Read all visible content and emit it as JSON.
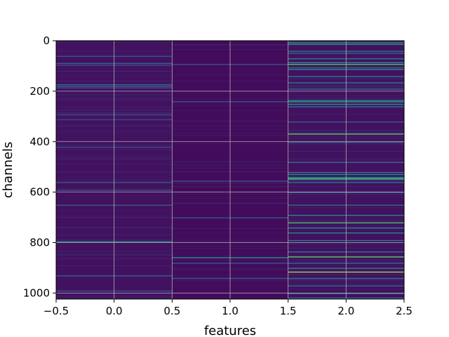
{
  "chart_data": {
    "type": "heatmap",
    "title": "",
    "xlabel": "features",
    "ylabel": "channels",
    "xlim": [
      -0.5,
      2.5
    ],
    "ylim": [
      1024,
      0
    ],
    "y_inverted": true,
    "grid": true,
    "colormap": "viridis",
    "x_ticks": [
      {
        "value": -0.5,
        "label": "−0.5"
      },
      {
        "value": 0.0,
        "label": "0.0"
      },
      {
        "value": 0.5,
        "label": "0.5"
      },
      {
        "value": 1.0,
        "label": "1.0"
      },
      {
        "value": 1.5,
        "label": "1.5"
      },
      {
        "value": 2.0,
        "label": "2.0"
      },
      {
        "value": 2.5,
        "label": "2.5"
      }
    ],
    "y_ticks": [
      {
        "value": 0,
        "label": "0"
      },
      {
        "value": 200,
        "label": "200"
      },
      {
        "value": 400,
        "label": "400"
      },
      {
        "value": 600,
        "label": "600"
      },
      {
        "value": 800,
        "label": "800"
      },
      {
        "value": 1000,
        "label": "1000"
      }
    ],
    "n_rows": 1024,
    "columns": [
      {
        "index": 0,
        "base_level": 0.05,
        "highlights": [
          [
            60,
            0.25
          ],
          [
            88,
            0.3
          ],
          [
            95,
            0.25
          ],
          [
            172,
            0.3
          ],
          [
            178,
            0.35
          ],
          [
            185,
            0.25
          ],
          [
            290,
            0.2
          ],
          [
            310,
            0.2
          ],
          [
            420,
            0.25
          ],
          [
            560,
            0.3
          ],
          [
            590,
            0.25
          ],
          [
            650,
            0.3
          ],
          [
            795,
            0.5
          ],
          [
            930,
            0.3
          ],
          [
            990,
            0.25
          ]
        ]
      },
      {
        "index": 1,
        "base_level": 0.03,
        "highlights": [
          [
            92,
            0.25
          ],
          [
            240,
            0.25
          ],
          [
            555,
            0.25
          ],
          [
            700,
            0.25
          ],
          [
            858,
            0.5
          ],
          [
            880,
            0.25
          ],
          [
            940,
            0.25
          ]
        ]
      },
      {
        "index": 2,
        "base_level": 0.05,
        "highlights": [
          [
            5,
            0.45
          ],
          [
            12,
            0.55
          ],
          [
            40,
            0.4
          ],
          [
            48,
            0.35
          ],
          [
            70,
            0.4
          ],
          [
            85,
            0.5
          ],
          [
            92,
            0.7
          ],
          [
            105,
            0.35
          ],
          [
            112,
            0.5
          ],
          [
            140,
            0.4
          ],
          [
            165,
            0.35
          ],
          [
            190,
            0.35
          ],
          [
            235,
            0.45
          ],
          [
            240,
            0.55
          ],
          [
            250,
            0.5
          ],
          [
            260,
            0.35
          ],
          [
            320,
            0.3
          ],
          [
            368,
            0.75
          ],
          [
            400,
            0.35
          ],
          [
            480,
            0.35
          ],
          [
            520,
            0.4
          ],
          [
            528,
            0.45
          ],
          [
            540,
            0.5
          ],
          [
            545,
            0.7
          ],
          [
            548,
            0.45
          ],
          [
            560,
            0.4
          ],
          [
            600,
            0.35
          ],
          [
            650,
            0.35
          ],
          [
            690,
            0.45
          ],
          [
            720,
            0.7
          ],
          [
            740,
            0.45
          ],
          [
            760,
            0.45
          ],
          [
            790,
            0.4
          ],
          [
            835,
            0.4
          ],
          [
            855,
            0.75
          ],
          [
            880,
            0.35
          ],
          [
            900,
            0.4
          ],
          [
            915,
            0.85
          ],
          [
            940,
            0.35
          ],
          [
            970,
            0.35
          ],
          [
            1000,
            0.4
          ],
          [
            1018,
            0.35
          ]
        ]
      }
    ]
  }
}
